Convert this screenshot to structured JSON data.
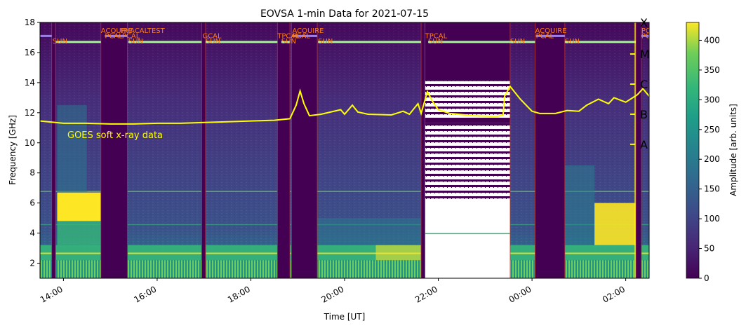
{
  "chart_data": {
    "type": "heatmap",
    "title": "EOVSA 1-min Data for 2021-07-15",
    "xlabel": "Time [UT]",
    "ylabel": "Frequency [GHz]",
    "xlim": [
      "2021-07-15 13:30",
      "2021-07-16 02:30"
    ],
    "ylim": [
      1,
      18
    ],
    "x_ticks": [
      {
        "value": "2021-07-15 14:00",
        "label": "14:00"
      },
      {
        "value": "2021-07-15 16:00",
        "label": "16:00"
      },
      {
        "value": "2021-07-15 18:00",
        "label": "18:00"
      },
      {
        "value": "2021-07-15 20:00",
        "label": "20:00"
      },
      {
        "value": "2021-07-15 22:00",
        "label": "22:00"
      },
      {
        "value": "2021-07-16 00:00",
        "label": "00:00"
      },
      {
        "value": "2021-07-16 02:00",
        "label": "02:00"
      }
    ],
    "y_ticks": [
      2,
      4,
      6,
      8,
      10,
      12,
      14,
      16,
      18
    ],
    "colorbar": {
      "label": "Amplitude [arb. units]",
      "range": [
        0,
        430
      ],
      "ticks": [
        0,
        50,
        100,
        150,
        200,
        250,
        300,
        350,
        400
      ],
      "colormap": "viridis"
    },
    "goes_label": "GOES soft x-ray data",
    "goes_classes": [
      {
        "label": "X",
        "freq": 18.0
      },
      {
        "label": "M",
        "freq": 15.9
      },
      {
        "label": "C",
        "freq": 13.9
      },
      {
        "label": "B",
        "freq": 11.9
      },
      {
        "label": "A",
        "freq": 9.9
      }
    ],
    "goes_curve": [
      [
        "13:30",
        11.45
      ],
      [
        "14:00",
        11.3
      ],
      [
        "14:30",
        11.3
      ],
      [
        "15:00",
        11.25
      ],
      [
        "15:30",
        11.25
      ],
      [
        "16:00",
        11.3
      ],
      [
        "16:30",
        11.3
      ],
      [
        "17:00",
        11.35
      ],
      [
        "17:30",
        11.4
      ],
      [
        "18:00",
        11.45
      ],
      [
        "18:30",
        11.5
      ],
      [
        "18:50",
        11.6
      ],
      [
        "18:58",
        12.5
      ],
      [
        "19:03",
        13.45
      ],
      [
        "19:08",
        12.6
      ],
      [
        "19:15",
        11.8
      ],
      [
        "19:30",
        11.9
      ],
      [
        "19:55",
        12.2
      ],
      [
        "20:00",
        11.9
      ],
      [
        "20:10",
        12.5
      ],
      [
        "20:17",
        12.05
      ],
      [
        "20:30",
        11.9
      ],
      [
        "21:00",
        11.85
      ],
      [
        "21:15",
        12.1
      ],
      [
        "21:23",
        11.9
      ],
      [
        "21:34",
        12.6
      ],
      [
        "21:38",
        11.95
      ],
      [
        "21:46",
        13.4
      ],
      [
        "21:52",
        12.8
      ],
      [
        "22:00",
        12.2
      ],
      [
        "22:15",
        11.95
      ],
      [
        "22:45",
        11.8
      ],
      [
        "23:15",
        11.75
      ],
      [
        "23:23",
        11.85
      ],
      [
        "23:25",
        13.1
      ],
      [
        "23:32",
        13.75
      ],
      [
        "23:45",
        12.9
      ],
      [
        "24:00",
        12.1
      ],
      [
        "24:10",
        11.95
      ],
      [
        "24:30",
        11.95
      ],
      [
        "24:45",
        12.15
      ],
      [
        "25:00",
        12.1
      ],
      [
        "25:10",
        12.5
      ],
      [
        "25:25",
        12.9
      ],
      [
        "25:38",
        12.6
      ],
      [
        "25:45",
        13.0
      ],
      [
        "26:00",
        12.7
      ],
      [
        "26:15",
        13.2
      ],
      [
        "26:22",
        13.6
      ],
      [
        "26:30",
        13.1
      ]
    ],
    "gaps": [
      {
        "start": "13:45",
        "end": "13:50",
        "color": "#440154"
      },
      {
        "start": "14:48",
        "end": "15:22",
        "color": "#440154"
      },
      {
        "start": "16:57",
        "end": "17:02",
        "color": "#440154"
      },
      {
        "start": "18:34",
        "end": "18:50",
        "color": "#440154"
      },
      {
        "start": "18:52",
        "end": "19:25",
        "color": "#440154"
      },
      {
        "start": "21:38",
        "end": "21:43",
        "color": "#440154"
      },
      {
        "start": "21:43",
        "end": "23:32",
        "color": "#ffffff"
      },
      {
        "start": "24:04",
        "end": "24:42",
        "color": "#440154"
      },
      {
        "start": "26:13",
        "end": "26:20",
        "color": "#440154"
      }
    ],
    "scan_labels": [
      {
        "text": "SUN",
        "time": "13:46",
        "freq": 16.6
      },
      {
        "text": "ACQUIRE",
        "time": "14:48",
        "freq": 17.3
      },
      {
        "text": "PCAL",
        "time": "14:53",
        "freq": 16.95
      },
      {
        "text": "PHACALTEST",
        "time": "15:13",
        "freq": 17.3
      },
      {
        "text": "PCAL",
        "time": "15:15",
        "freq": 16.95
      },
      {
        "text": "SUN",
        "time": "15:23",
        "freq": 16.6
      },
      {
        "text": "GCAL",
        "time": "16:58",
        "freq": 16.95
      },
      {
        "text": "SUN",
        "time": "17:02",
        "freq": 16.6
      },
      {
        "text": "TPCAL",
        "time": "18:34",
        "freq": 16.95
      },
      {
        "text": "SUN",
        "time": "18:39",
        "freq": 16.6
      },
      {
        "text": "ACQUIRE",
        "time": "18:53",
        "freq": 17.3
      },
      {
        "text": "PCAL",
        "time": "18:53",
        "freq": 16.95
      },
      {
        "text": "SUN",
        "time": "19:26",
        "freq": 16.6
      },
      {
        "text": "TPCAL",
        "time": "21:43",
        "freq": 16.95
      },
      {
        "text": "SUN",
        "time": "21:47",
        "freq": 16.6
      },
      {
        "text": "SUN",
        "time": "23:32",
        "freq": 16.6
      },
      {
        "text": "ACQUIRE",
        "time": "24:04",
        "freq": 17.3
      },
      {
        "text": "PCAL",
        "time": "24:05",
        "freq": 16.95
      },
      {
        "text": "SUN",
        "time": "24:42",
        "freq": 16.6
      },
      {
        "text": "PC",
        "time": "26:20",
        "freq": 17.3
      },
      {
        "text": "PC",
        "time": "26:20",
        "freq": 16.95
      }
    ]
  }
}
